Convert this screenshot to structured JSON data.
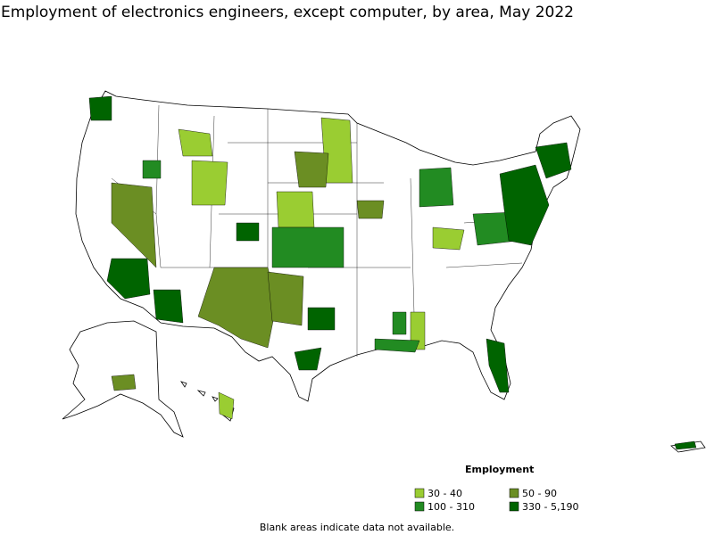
{
  "title": "Employment of electronics engineers, except computer, by area, May 2022",
  "legend": {
    "title": "Employment",
    "items": [
      {
        "label": "30 - 40",
        "color": "#9acd32"
      },
      {
        "label": "50 - 90",
        "color": "#6b8e23"
      },
      {
        "label": "100 - 310",
        "color": "#228b22"
      },
      {
        "label": "330 - 5,190",
        "color": "#006400"
      }
    ]
  },
  "note": "Blank areas indicate data not available."
}
